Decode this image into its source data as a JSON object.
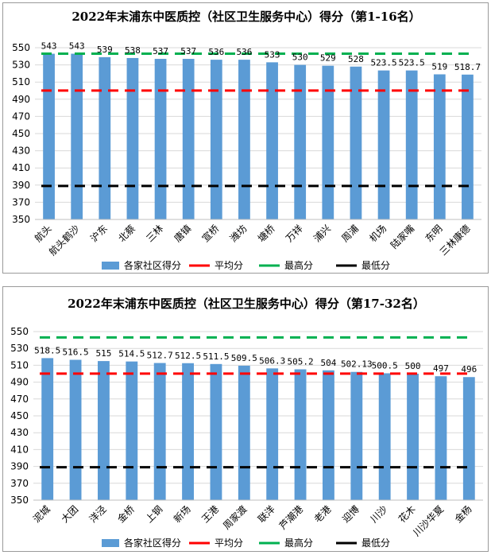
{
  "colors": {
    "bar": "#5b9bd5",
    "average_line": "#ff0000",
    "max_line": "#00b050",
    "min_line": "#000000",
    "grid": "#d9d9d9"
  },
  "chart_data": [
    {
      "type": "bar",
      "title": "2022年末浦东中医质控（社区卫生服务中心）得分（第1-16名）",
      "categories": [
        "航头",
        "航头鹤沙",
        "沪东",
        "北蔡",
        "三林",
        "唐镇",
        "宣桥",
        "潍坊",
        "塘桥",
        "万祥",
        "浦兴",
        "周浦",
        "机场",
        "陆家嘴",
        "东明",
        "三林康德"
      ],
      "values": [
        543,
        543,
        539,
        538,
        537,
        537,
        536,
        536,
        533,
        530,
        529,
        528,
        523.5,
        523.5,
        519,
        518.7
      ],
      "data_labels": [
        "543",
        "543",
        "539",
        "538",
        "537",
        "537",
        "536",
        "536",
        "533",
        "530",
        "529",
        "528",
        "523.5",
        "523.5",
        "519",
        "518.7"
      ],
      "reference_lines": {
        "average": 500.1,
        "max": 543,
        "min": 389
      },
      "ylim": [
        350,
        550
      ],
      "yticks": [
        350,
        370,
        390,
        410,
        430,
        450,
        470,
        490,
        510,
        530,
        550
      ],
      "grid": true,
      "legend_position": "bottom",
      "legend": [
        "各家社区得分",
        "平均分",
        "最高分",
        "最低分"
      ],
      "xlabel": "",
      "ylabel": ""
    },
    {
      "type": "bar",
      "title": "2022年末浦东中医质控（社区卫生服务中心）得分（第17-32名）",
      "categories": [
        "泥城",
        "大团",
        "洋泾",
        "金桥",
        "上钢",
        "新场",
        "王港",
        "周家渡",
        "联洋",
        "芦潮港",
        "老港",
        "迎博",
        "川沙",
        "花木",
        "川沙华夏",
        "金杨"
      ],
      "values": [
        518.5,
        516.5,
        515,
        514.5,
        512.7,
        512.5,
        511.5,
        509.5,
        506.3,
        505.2,
        504,
        502.13,
        500.5,
        500,
        497,
        496
      ],
      "data_labels": [
        "518.5",
        "516.5",
        "515",
        "514.5",
        "512.7",
        "512.5",
        "511.5",
        "509.5",
        "506.3",
        "505.2",
        "504",
        "502.13",
        "500.5",
        "500",
        "497",
        "496"
      ],
      "reference_lines": {
        "average": 500.1,
        "max": 543,
        "min": 389
      },
      "ylim": [
        350,
        550
      ],
      "yticks": [
        350,
        370,
        390,
        410,
        430,
        450,
        470,
        490,
        510,
        530,
        550
      ],
      "grid": true,
      "legend_position": "bottom",
      "legend": [
        "各家社区得分",
        "平均分",
        "最高分",
        "最低分"
      ],
      "xlabel": "",
      "ylabel": ""
    }
  ]
}
